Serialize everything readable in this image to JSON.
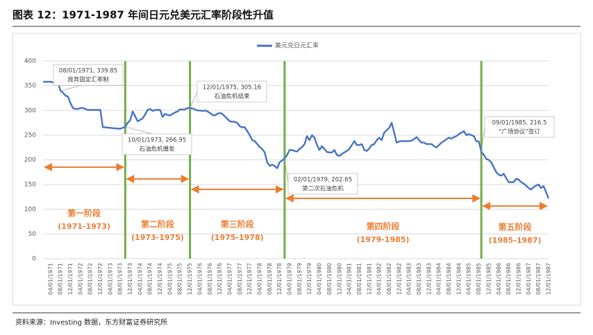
{
  "chart_data": {
    "type": "line",
    "title": "图表 12：1971-1987 年间日元兑美元汇率阶段性升值",
    "source": "资料来源：Investing 数据，东方财富证券研究所",
    "categories": [
      null,
      null,
      null,
      "04/01/1971",
      null,
      null,
      null,
      "08/01/1971",
      null,
      null,
      null,
      "12/01/1971",
      null,
      null,
      null,
      "04/01/1972",
      null,
      null,
      null,
      "08/01/1972",
      null,
      null,
      null,
      "12/01/1972",
      null,
      null,
      null,
      "04/01/1973",
      null,
      null,
      null,
      "08/01/1973",
      null,
      null,
      null,
      "12/01/1973",
      null,
      null,
      null,
      "04/01/1974",
      null,
      null,
      null,
      "08/01/1974",
      null,
      null,
      null,
      "12/01/1974",
      null,
      null,
      null,
      "04/01/1975",
      null,
      null,
      null,
      "08/01/1975",
      null,
      null,
      null,
      "12/01/1975",
      null,
      null,
      null,
      "04/01/1976",
      null,
      null,
      null,
      "08/01/1976",
      null,
      null,
      null,
      "12/01/1976",
      null,
      null,
      null,
      "04/01/1977",
      null,
      null,
      null,
      "08/01/1977",
      null,
      null,
      null,
      "12/01/1977",
      null,
      null,
      null,
      "04/01/1978",
      null,
      null,
      null,
      "08/01/1978",
      null,
      null,
      null,
      "12/01/1978",
      null,
      null,
      null,
      "04/01/1979",
      null,
      null,
      null,
      "08/01/1979",
      null,
      null,
      null,
      "12/01/1979",
      null,
      null,
      null,
      "04/01/1980",
      null,
      null,
      null,
      "08/01/1980",
      null,
      null,
      null,
      "12/01/1980",
      null,
      null,
      null,
      "04/01/1981",
      null,
      null,
      null,
      "08/01/1981",
      null,
      null,
      null,
      "12/01/1981",
      null,
      null,
      null,
      "04/01/1982",
      null,
      null,
      null,
      "08/01/1982",
      null,
      null,
      null,
      "12/01/1982",
      null,
      null,
      null,
      "04/01/1983",
      null,
      null,
      null,
      "08/01/1983",
      null,
      null,
      null,
      "12/01/1983",
      null,
      null,
      null,
      "04/01/1984",
      null,
      null,
      null,
      "08/01/1984",
      null,
      null,
      null,
      "12/01/1984",
      null,
      null,
      null,
      "04/01/1985",
      null,
      null,
      null,
      "08/01/1985",
      null,
      null,
      null,
      "12/01/1985",
      null,
      null,
      null,
      "04/01/1986",
      null,
      null,
      null,
      "08/01/1986",
      null,
      null,
      null,
      "12/01/1986",
      null,
      null,
      null,
      "04/01/1987",
      null,
      null,
      null,
      "08/01/1987",
      null,
      null,
      null,
      "12/01/1987"
    ],
    "series": [
      {
        "name": "美元兑日元汇率",
        "color": "#4472c4",
        "values": [
          358,
          358,
          358,
          358,
          357,
          357,
          357,
          340,
          336,
          330,
          328,
          315,
          305,
          303,
          303,
          305,
          305,
          303,
          301,
          301,
          301,
          301,
          301,
          301,
          266,
          266,
          265,
          265,
          264,
          264,
          263,
          263,
          265,
          266.95,
          275,
          280,
          298,
          288,
          278,
          281,
          284,
          292,
          301,
          303,
          299,
          301,
          301,
          301,
          287,
          293,
          291,
          290,
          293,
          296,
          298,
          302,
          302,
          302,
          305,
          305.16,
          304,
          302,
          300,
          300,
          299,
          300,
          298,
          295,
          291,
          290,
          293,
          295,
          293,
          288,
          283,
          278,
          277,
          277,
          275,
          268,
          266,
          266,
          258,
          250,
          240,
          238,
          232,
          226,
          222,
          215,
          195,
          188,
          190,
          188,
          183,
          195,
          199,
          202.65,
          210,
          220,
          220,
          218,
          217,
          222,
          226,
          232,
          248,
          240,
          250,
          245,
          230,
          220,
          228,
          222,
          216,
          215,
          215,
          220,
          210,
          208,
          212,
          215,
          218,
          222,
          230,
          238,
          230,
          230,
          232,
          220,
          218,
          223,
          230,
          232,
          240,
          245,
          240,
          255,
          260,
          265,
          275,
          255,
          235,
          237,
          238,
          238,
          238,
          238,
          239,
          242,
          246,
          240,
          235,
          235,
          232,
          232,
          232,
          228,
          225,
          230,
          235,
          238,
          242,
          245,
          243,
          246,
          248,
          252,
          255,
          258,
          250,
          252,
          250,
          248,
          238,
          237,
          216.5,
          210,
          202,
          200,
          195,
          185,
          175,
          170,
          168,
          172,
          163,
          155,
          155,
          155,
          162,
          160,
          155,
          152,
          148,
          143,
          140,
          145,
          148,
          150,
          143,
          147,
          135,
          122
        ]
      }
    ],
    "ylim": [
      0,
      400
    ],
    "yticks": [
      0,
      50,
      100,
      150,
      200,
      250,
      300,
      350,
      400
    ],
    "grid": true,
    "annotations": [
      {
        "x": "08/01/1971",
        "value": 339.85,
        "label": "08/01/1971, 339.85",
        "note": "放弃固定汇率制"
      },
      {
        "x": "10/01/1973",
        "value": 266.95,
        "label": "10/01/1973, 266.95",
        "note": "石油危机爆发"
      },
      {
        "x": "12/01/1975",
        "value": 305.16,
        "label": "12/01/1975, 305.16",
        "note": "石油危机结束"
      },
      {
        "x": "02/01/1979",
        "value": 202.65,
        "label": "02/01/1979, 202.65",
        "note": "第二次石油危机"
      },
      {
        "x": "09/01/1985",
        "value": 216.5,
        "label": "09/01/1985, 216.5",
        "note": "“广场协议”签订"
      }
    ],
    "phases": [
      {
        "name": "第一阶段",
        "period": "(1971-1973)"
      },
      {
        "name": "第二阶段",
        "period": "(1973-1975)"
      },
      {
        "name": "第三阶段",
        "period": "(1975-1978)"
      },
      {
        "name": "第四阶段",
        "period": "(1979-1985)"
      },
      {
        "name": "第五阶段",
        "period": "(1985-1987)"
      }
    ]
  }
}
